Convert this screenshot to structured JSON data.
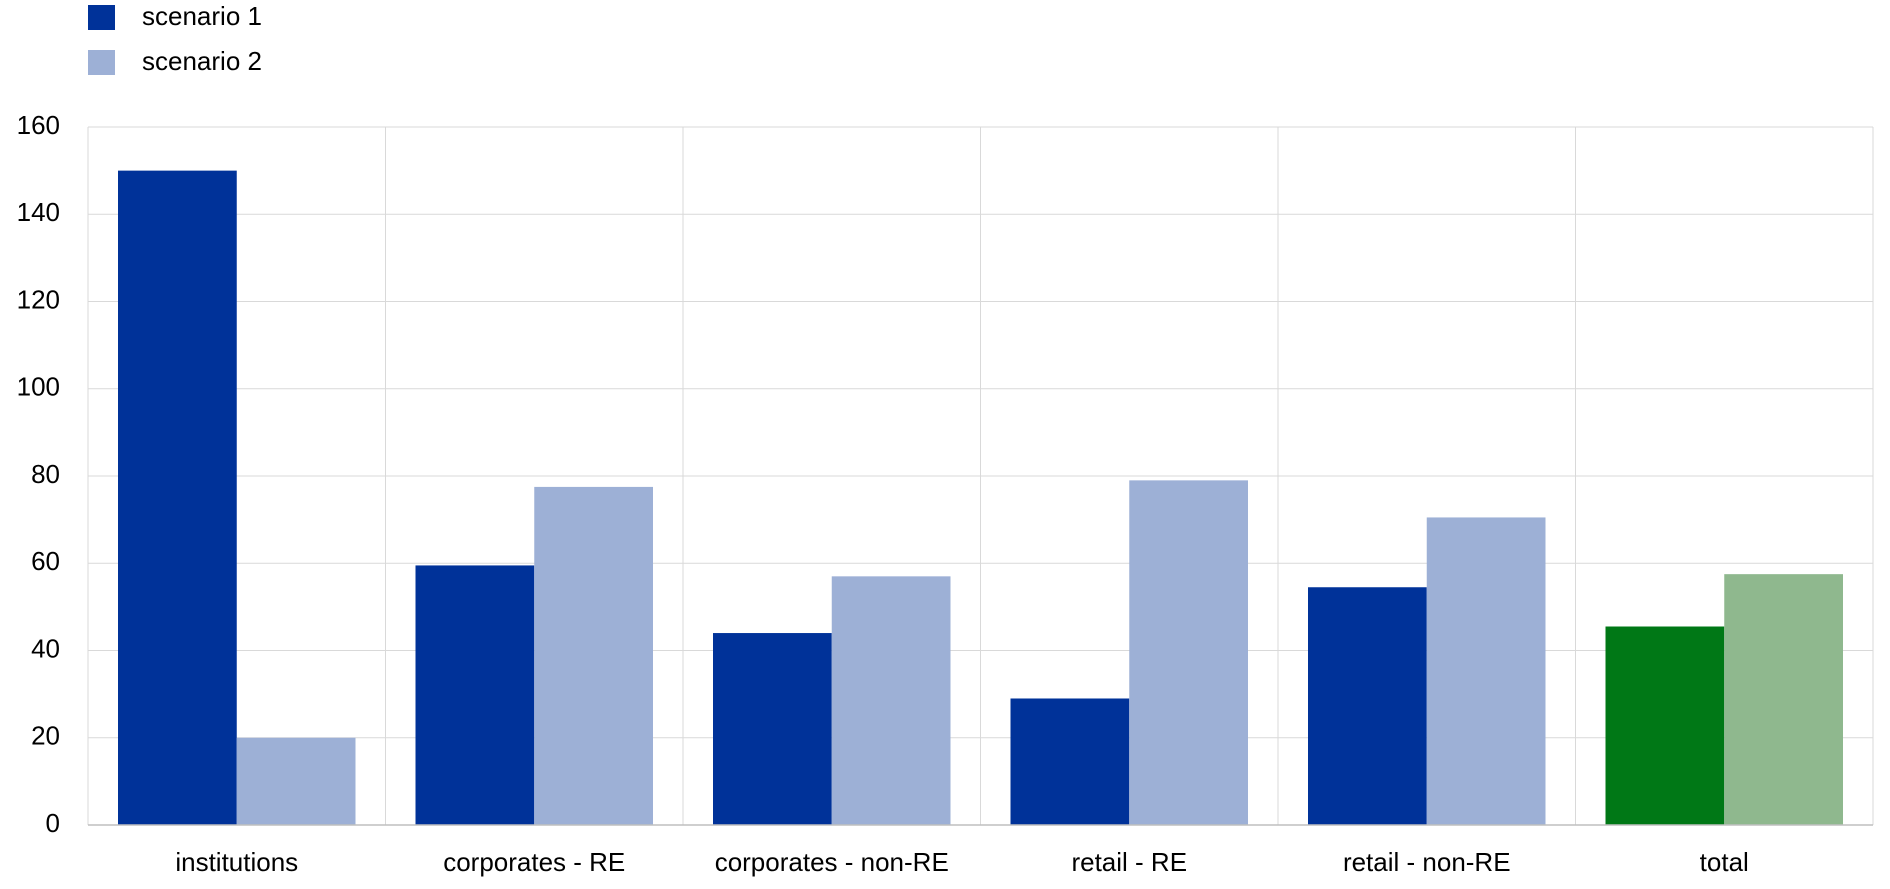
{
  "chart_data": {
    "type": "bar",
    "categories": [
      "institutions",
      "corporates - RE",
      "corporates - non-RE",
      "retail - RE",
      "retail - non-RE",
      "total"
    ],
    "series": [
      {
        "name": "scenario 1",
        "color": "#003299",
        "colors": [
          "#003299",
          "#003299",
          "#003299",
          "#003299",
          "#003299",
          "#007816"
        ],
        "values": [
          150,
          59.5,
          44,
          29,
          54.5,
          45.5
        ]
      },
      {
        "name": "scenario 2",
        "color": "#9db0d6",
        "colors": [
          "#9db0d6",
          "#9db0d6",
          "#9db0d6",
          "#9db0d6",
          "#9db0d6",
          "#8fb88e"
        ],
        "values": [
          20,
          77.5,
          57,
          79,
          70.5,
          57.5
        ]
      }
    ],
    "ylim": [
      0,
      160
    ],
    "yticks": [
      0,
      20,
      40,
      60,
      80,
      100,
      120,
      140,
      160
    ],
    "grid": true
  }
}
